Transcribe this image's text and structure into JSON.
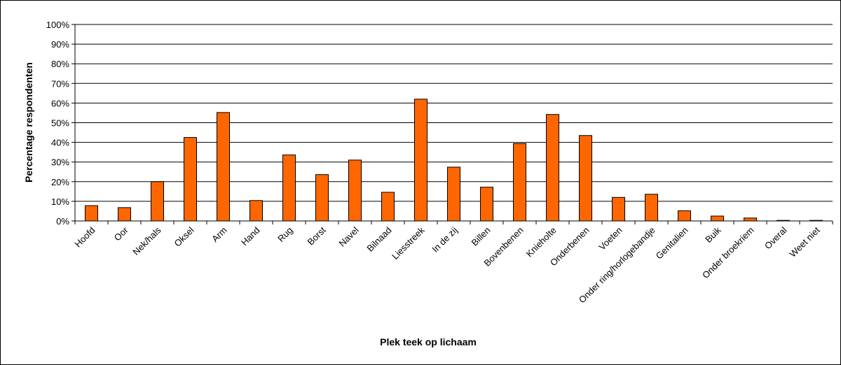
{
  "chart_data": {
    "type": "bar",
    "title": "",
    "xlabel": "Plek teek op lichaam",
    "ylabel": "Percentage respondenten",
    "ylim": [
      0,
      100
    ],
    "yticks": [
      "0%",
      "10%",
      "20%",
      "30%",
      "40%",
      "50%",
      "60%",
      "70%",
      "80%",
      "90%",
      "100%"
    ],
    "grid": true,
    "legend": "none",
    "bar_color": "#ff6600",
    "categories": [
      "Hoofd",
      "Oor",
      "Nek/hals",
      "Oksel",
      "Arm",
      "Hand",
      "Rug",
      "Borst",
      "Navel",
      "Bilnaad",
      "Liesstreek",
      "In de zij",
      "Billen",
      "Bovenbenen",
      "Knieholte",
      "Onderbenen",
      "Voeten",
      "Onder ring/horlogebandje",
      "Genitalien",
      "Buik",
      "Onder broekriem",
      "Overal",
      "Weet niet"
    ],
    "values": [
      7.8,
      6.8,
      20.0,
      42.5,
      55.2,
      10.4,
      33.6,
      23.6,
      31.0,
      14.6,
      62.0,
      27.4,
      17.2,
      39.4,
      54.2,
      43.5,
      12.0,
      13.6,
      5.2,
      2.5,
      1.5,
      0.3,
      0.3
    ]
  }
}
